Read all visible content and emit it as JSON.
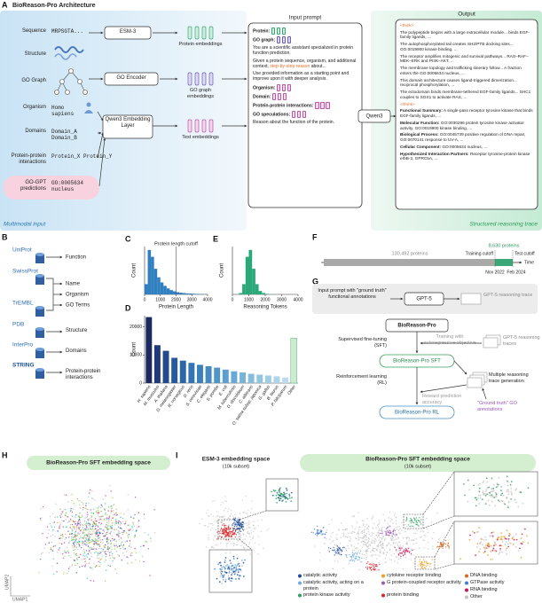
{
  "panel_a": {
    "label": "A",
    "title": "BioReason-Pro Architecture",
    "inputs": [
      {
        "name": "Sequence",
        "value": "MRPSGTA..."
      },
      {
        "name": "Structure"
      },
      {
        "name": "GO Graph"
      },
      {
        "name": "Organism",
        "value": "Homo sapiens"
      },
      {
        "name": "Domains",
        "value": "Domain_A Domain_B"
      },
      {
        "name": "Protein-protein interactions",
        "value": "Protein_X Protein_Y"
      },
      {
        "name": "GO-GPT predictions",
        "value": "GO:0005634 nucleus"
      }
    ],
    "encoders": [
      "ESM-3",
      "GO Encoder",
      "Qwen3 Embedding Layer"
    ],
    "embeddings": [
      "Protein embeddings",
      "GO graph embeddings",
      "Text embeddings"
    ],
    "input_caption": "Multimodal input",
    "prompt": {
      "title": "Input prompt",
      "protein": "Protein:",
      "go_graph": "GO graph:",
      "intro": "You are a scientific assistant specialized in protein function prediction.",
      "instruction_start": "Given a protein sequence, organism, and additional context,",
      "instruction_highlight": "step-by-step reason",
      "instruction_end": "about...",
      "improve": "Use provided information as a starting point and improve upon it with deeper analysis.",
      "fields": [
        "Organism:",
        "Domain:",
        "Protein-protein interactions:",
        "GO speculations:"
      ],
      "closing": "Reason about the function of the protein."
    },
    "model": "Qwen3",
    "output": {
      "title": "Output",
      "think_open": "<think>",
      "trace": [
        "The polypeptide begins with a large extracellular module... binds EGF-family ligands, ...",
        "The autophosphorylated tail creates SH2/PTB docking sites... GO:0019900 kinase binding, ...",
        "The receptor amplifies mitogenic and survival pathways... RAS–RAF–MEK–ERK and PI3K–AKT, ...",
        "The membrane topology and trafficking itinerary follow... A fraction enters the GO:0005634 nucleus, ...",
        "This domain architecture causes ligand-triggered dimerization... reciprocal phosphorylation, ...",
        "The ectodomain binds membrane-tethered EGF-family ligands... SHC1 couples to SOS1 to activate RAS, ..."
      ],
      "think_close": "</think>",
      "summary": [
        {
          "label": "Functional Summary:",
          "text": "A single-pass receptor tyrosine kinase that binds EGF-family ligands, ..."
        },
        {
          "label": "Molecular Function:",
          "text": "GO:0030296 protein tyrosine kinase activator activity, GO:0019900 kinase binding, ..."
        },
        {
          "label": "Biological Process:",
          "text": "GO:0045739 positive regulation of DNA repair, GO:0070141 response to UV-A, ..."
        },
        {
          "label": "Cellular Component:",
          "text": "GO:0005634 nucleus, ..."
        },
        {
          "label": "Hypothesized Interaction Partners:",
          "text": "Receptor tyrosine-protein kinase erbB-2, GPRC5A, ..."
        }
      ]
    },
    "output_caption": "Structured reasoning trace"
  },
  "panel_b": {
    "label": "B",
    "uniprot": "UniProt",
    "uniprot_output": "Function",
    "swissprot": "SwissProt",
    "trembl": "TrEMBL",
    "shared_outputs": [
      "Name",
      "Organism",
      "GO Terms"
    ],
    "sources": [
      {
        "name": "PDB",
        "output": "Structure"
      },
      {
        "name": "InterPro",
        "output": "Domains"
      },
      {
        "name": "STRING",
        "output": "Protein-protein interactions"
      }
    ]
  },
  "chart_data": [
    {
      "label": "C",
      "type": "histogram",
      "annotation": "Protein length cutoff",
      "cutoff": 2000,
      "color": "#2f7fc1",
      "bins": [
        0,
        200,
        400,
        600,
        800,
        1000,
        1200,
        1400,
        1600,
        1800,
        2000,
        2200,
        2400,
        2600,
        2800,
        3000,
        3200,
        3400,
        3600,
        3800,
        4000
      ],
      "values": [
        600,
        2600,
        2200,
        1500,
        1000,
        700,
        500,
        350,
        250,
        180,
        130,
        100,
        80,
        60,
        50,
        40,
        30,
        25,
        20,
        15
      ],
      "xlim": [
        0,
        4000
      ],
      "xticks": [
        0,
        1000,
        2000,
        3000,
        4000
      ],
      "ylim": [
        0,
        2800
      ],
      "x_label": "Protein Length",
      "y_label": "Count"
    },
    {
      "label": "D",
      "type": "bar",
      "y_label": "Count",
      "categories": [
        "H. sapiens",
        "M. musculus",
        "A. thaliana",
        "D. melanogaster",
        "R. norvegicus",
        "D. rerio",
        "S. cerevisiae",
        "C. elegans",
        "S. pombe",
        "E. coli",
        "M. tuberculosis",
        "D. discoideum",
        "C. albicans",
        "O. sativa subsp. japonica",
        "G. gallus",
        "B. taurus",
        "P. falciparum",
        "Other"
      ],
      "values": [
        23500,
        13500,
        11500,
        9000,
        8000,
        7200,
        6500,
        6000,
        5500,
        4800,
        4200,
        3800,
        3300,
        3000,
        2700,
        2400,
        2000,
        16000
      ],
      "colors": [
        "#1b2a5e",
        "#1f3a7a",
        "#234a8e",
        "#27599c",
        "#2b67a8",
        "#3374b2",
        "#3b80ba",
        "#448bc1",
        "#4f96c8",
        "#5ba0ce",
        "#68aad3",
        "#76b4d8",
        "#84bddd",
        "#92c5e1",
        "#a0cde5",
        "#aed4e9",
        "#bcdbec",
        "#cdebd2"
      ],
      "ylim": [
        0,
        24000
      ],
      "yticks": [
        0,
        10000,
        20000
      ]
    },
    {
      "label": "E",
      "type": "histogram",
      "color": "#2aa87a",
      "bins": [
        0,
        200,
        400,
        600,
        800,
        1000,
        1200,
        1400,
        1600,
        1800,
        2000,
        2200,
        2400,
        2600,
        2800,
        3000,
        3200,
        3400,
        3600,
        3800,
        4000
      ],
      "values": [
        0,
        5,
        80,
        600,
        2200,
        2600,
        1500,
        600,
        200,
        80,
        30,
        10,
        5,
        2,
        1,
        0,
        0,
        0,
        0,
        0
      ],
      "xlim": [
        0,
        4000
      ],
      "xticks": [
        0,
        1000,
        2000,
        3000,
        4000
      ],
      "ylim": [
        0,
        2800
      ],
      "x_label": "Reasoning Tokens",
      "y_label": "Count"
    }
  ],
  "panel_f": {
    "label": "F",
    "train": "130,492 proteins",
    "test": "8,630 proteins",
    "train_cutoff": "Training cutoff",
    "test_cutoff": "Test cutoff",
    "train_date": "Nov 2022",
    "test_date": "Feb 2024",
    "axis": "Time"
  },
  "panel_g": {
    "label": "G",
    "input": "Input prompt with \"ground truth\" functional annotations",
    "teacher": "GPT-5",
    "teacher_trace": "GPT-5 reasoning trace",
    "base": "BioReason-Pro",
    "sft": "Supervised fine-tuning (SFT)",
    "sft_objective": "Training with autoregressive objective",
    "sft_traces": "GPT-5 reasoning traces",
    "sft_model": "BioReason-Pro SFT",
    "rl": "Reinforcement learning (RL)",
    "rl_generation": "Multiple reasoning trace generation",
    "rl_reward": "Reward prediction accuracy",
    "rl_truth": "\"Ground truth\" GO annotations",
    "rl_model": "BioReason-Pro RL"
  },
  "panel_h": {
    "label": "H",
    "title": "BioReason-Pro SFT embedding space",
    "x_axis": "UMAP1",
    "y_axis": "UMAP2"
  },
  "panel_i": {
    "label": "I",
    "left_title": "ESM-3 embedding space",
    "left_subtitle": "(10k subset)",
    "right_title": "BioReason-Pro SFT embedding space",
    "right_subtitle": "(10k subset)",
    "legend": [
      {
        "name": "catalytic activity",
        "color": "#1f4e9c"
      },
      {
        "name": "catalytic activity, acting on a protein",
        "color": "#6aaee0"
      },
      {
        "name": "protein kinase activity",
        "color": "#2ca25f"
      },
      {
        "name": "cytokine receptor binding",
        "color": "#f0a020"
      },
      {
        "name": "G protein-coupled receptor activity",
        "color": "#9b59b6"
      },
      {
        "name": "protein binding",
        "color": "#d62728"
      },
      {
        "name": "DNA binding",
        "color": "#d2691e"
      },
      {
        "name": "GTPase activity",
        "color": "#3f7fd0"
      },
      {
        "name": "RNA binding",
        "color": "#c2185b"
      },
      {
        "name": "Other",
        "color": "#c4c4c4"
      }
    ]
  }
}
